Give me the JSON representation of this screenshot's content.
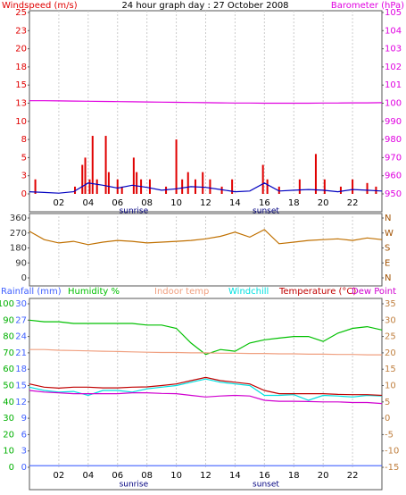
{
  "chart_data": [
    {
      "type": "line",
      "title": "24 hour graph day : 27 October 2008",
      "ylabel": "Windspeed (m/s)",
      "y2label": "Barometer (hPa)",
      "xlim": [
        0,
        24
      ],
      "x": [
        0,
        1,
        2,
        3,
        4,
        5,
        6,
        7,
        8,
        9,
        10,
        11,
        12,
        13,
        14,
        15,
        16,
        17,
        18,
        19,
        20,
        21,
        22,
        23,
        24
      ],
      "xticks": [
        {
          "value": 2,
          "label": "02"
        },
        {
          "value": 4,
          "label": "04"
        },
        {
          "value": 6,
          "label": "06"
        },
        {
          "value": 8,
          "label": "08"
        },
        10,
        12,
        14,
        16,
        18,
        20,
        22
      ],
      "ylim": [
        0,
        25
      ],
      "yticks": [
        0,
        {
          "value": 2.5,
          "label": "3"
        },
        5,
        {
          "value": 7.5,
          "label": "8"
        },
        10,
        {
          "value": 12.5,
          "label": "13"
        },
        15,
        {
          "value": 17.5,
          "label": "18"
        },
        20,
        {
          "value": 22.5,
          "label": "23"
        },
        25
      ],
      "y2lim": [
        950,
        1050
      ],
      "y2ticks": [
        950,
        960,
        970,
        980,
        990,
        {
          "value": 1000,
          "label": "100"
        },
        {
          "value": 1010,
          "label": "101"
        },
        {
          "value": 1020,
          "label": "102"
        },
        {
          "value": 1030,
          "label": "103"
        },
        {
          "value": 1040,
          "label": "104"
        },
        {
          "value": 1050,
          "label": "105"
        }
      ],
      "grid": "x",
      "annotations": [
        {
          "text": "sunrise",
          "x": 7.1
        },
        {
          "text": "sunset",
          "x": 16.1
        }
      ],
      "series": [
        {
          "type": "bar",
          "color": "#e00000",
          "x": [
            0.4,
            3.1,
            3.6,
            3.8,
            4.1,
            4.3,
            4.6,
            5.2,
            5.4,
            6.0,
            6.3,
            7.1,
            7.3,
            7.6,
            8.2,
            9.3,
            10.0,
            10.4,
            10.8,
            11.3,
            11.8,
            12.3,
            13.1,
            13.8,
            15.9,
            16.2,
            17.0,
            18.4,
            19.5,
            20.1,
            21.2,
            22.0,
            23.0,
            23.6
          ],
          "values": [
            2,
            1,
            4,
            5,
            2,
            8,
            2,
            8,
            3,
            2,
            1,
            5,
            3,
            2,
            2,
            1,
            7.5,
            2,
            3,
            2,
            3,
            2,
            1,
            2,
            4,
            2,
            1,
            2,
            5.5,
            2,
            1,
            2,
            1.5,
            1
          ]
        },
        {
          "type": "line",
          "color": "#0000c0",
          "values": [
            0.3,
            0.2,
            0.1,
            0.3,
            1.5,
            1.2,
            0.8,
            1.2,
            0.9,
            0.5,
            0.7,
            1.0,
            0.9,
            0.6,
            0.3,
            0.4,
            1.5,
            0.4,
            0.5,
            0.6,
            0.5,
            0.3,
            0.6,
            0.5,
            0.4
          ]
        },
        {
          "type": "line",
          "color": "#e000e0",
          "axis": "y2",
          "values": [
            1001.4,
            1001.4,
            1001.3,
            1001.2,
            1001.1,
            1001,
            1000.9,
            1000.8,
            1000.7,
            1000.6,
            1000.5,
            1000.4,
            1000.3,
            1000.2,
            1000.1,
            1000.1,
            1000,
            1000,
            1000,
            1000,
            1000.1,
            1000.1,
            1000.2,
            1000.2,
            1000.3
          ]
        }
      ]
    },
    {
      "type": "line",
      "xlim": [
        0,
        24
      ],
      "x": [
        0,
        1,
        2,
        3,
        4,
        5,
        6,
        7,
        8,
        9,
        10,
        11,
        12,
        13,
        14,
        15,
        16,
        17,
        18,
        19,
        20,
        21,
        22,
        23,
        24
      ],
      "xticks": [
        2,
        4,
        6,
        8,
        10,
        12,
        14,
        16,
        18,
        20,
        22
      ],
      "ylim": [
        0,
        360
      ],
      "yticks": [
        0,
        90,
        180,
        270,
        360
      ],
      "y2ticks": [
        {
          "value": 0,
          "label": "N"
        },
        {
          "value": 90,
          "label": "E"
        },
        {
          "value": 180,
          "label": "S"
        },
        {
          "value": 270,
          "label": "W"
        },
        {
          "value": 360,
          "label": "N"
        }
      ],
      "grid": "x",
      "series": [
        {
          "type": "line",
          "color": "#c07000",
          "values": [
            280,
            230,
            210,
            220,
            200,
            215,
            225,
            220,
            210,
            215,
            220,
            225,
            235,
            250,
            275,
            245,
            290,
            205,
            215,
            225,
            230,
            235,
            225,
            240,
            230
          ]
        }
      ]
    },
    {
      "type": "line",
      "xlim": [
        0,
        24
      ],
      "x": [
        0,
        1,
        2,
        3,
        4,
        5,
        6,
        7,
        8,
        9,
        10,
        11,
        12,
        13,
        14,
        15,
        16,
        17,
        18,
        19,
        20,
        21,
        22,
        23,
        24
      ],
      "xticks": [
        {
          "value": 2,
          "label": "02"
        },
        {
          "value": 4,
          "label": "04"
        },
        {
          "value": 6,
          "label": "06"
        },
        {
          "value": 8,
          "label": "08"
        },
        10,
        12,
        14,
        16,
        18,
        20,
        22
      ],
      "ylim": [
        0,
        100
      ],
      "yticks": [
        0,
        10,
        20,
        30,
        40,
        50,
        60,
        70,
        80,
        90,
        100
      ],
      "y3lim": [
        0,
        30
      ],
      "y3ticks": [
        0,
        3,
        6,
        9,
        12,
        15,
        18,
        21,
        24,
        27,
        30
      ],
      "y2lim": [
        -15,
        35
      ],
      "y2ticks": [
        -15,
        -10,
        -5,
        0,
        5,
        10,
        15,
        20,
        25,
        30,
        35
      ],
      "grid": "x",
      "annotations": [
        {
          "text": "sunrise",
          "x": 7.1
        },
        {
          "text": "sunset",
          "x": 16.1
        }
      ],
      "series": [
        {
          "name": "Rainfall (mm)",
          "type": "line",
          "color": "#4060ff",
          "axis": "y3",
          "values": [
            0.3,
            0.3,
            0.3,
            0.3,
            0.3,
            0.3,
            0.3,
            0.3,
            0.3,
            0.3,
            0.3,
            0.3,
            0.3,
            0.3,
            0.3,
            0.3,
            0.3,
            0.3,
            0.3,
            0.3,
            0.3,
            0.3,
            0.3,
            0.3,
            0.3
          ]
        },
        {
          "name": "Humidity %",
          "type": "line",
          "color": "#00c000",
          "values": [
            90,
            89,
            89,
            88,
            88,
            88,
            88,
            88,
            87,
            87,
            85,
            76,
            69,
            72,
            71,
            76,
            78,
            79,
            80,
            80,
            77,
            82,
            85,
            86,
            84
          ]
        },
        {
          "name": "Indoor temp",
          "type": "line",
          "color": "#f0a080",
          "axis": "y2",
          "values": [
            21,
            21,
            20.8,
            20.7,
            20.6,
            20.5,
            20.4,
            20.3,
            20.2,
            20.1,
            20.1,
            20,
            20,
            19.9,
            19.9,
            19.8,
            19.8,
            19.7,
            19.7,
            19.6,
            19.6,
            19.5,
            19.5,
            19.4,
            19.4
          ]
        },
        {
          "name": "Windchill",
          "type": "line",
          "color": "#00e0e0",
          "axis": "y2",
          "values": [
            9.5,
            8.5,
            8,
            8.2,
            7,
            8.5,
            8.5,
            8,
            9,
            9.5,
            10,
            11,
            12,
            11,
            10.5,
            10,
            7,
            7,
            7.2,
            5.5,
            7,
            6.8,
            6.5,
            7,
            6.8
          ]
        },
        {
          "name": "Temperature (°C)",
          "type": "line",
          "color": "#c00000",
          "axis": "y2",
          "values": [
            10.5,
            9.5,
            9.2,
            9.5,
            9.5,
            9.3,
            9.3,
            9.5,
            9.6,
            10,
            10.5,
            11.5,
            12.5,
            11.5,
            11,
            10.5,
            8.5,
            7.5,
            7.5,
            7.5,
            7.5,
            7.3,
            7.2,
            7.2,
            7
          ]
        },
        {
          "name": "Dew Point",
          "type": "line",
          "color": "#d000d0",
          "axis": "y2",
          "values": [
            8.5,
            8,
            7.8,
            7.5,
            7.5,
            7.5,
            7.5,
            7.8,
            7.8,
            7.6,
            7.5,
            7,
            6.5,
            6.8,
            7,
            6.8,
            5.5,
            5.2,
            5.2,
            5.1,
            5,
            5,
            4.8,
            4.8,
            4.5
          ]
        }
      ]
    }
  ]
}
